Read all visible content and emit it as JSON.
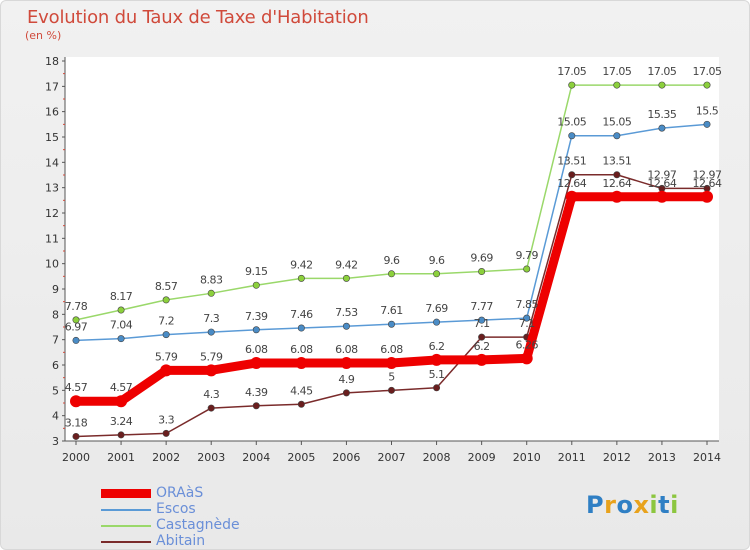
{
  "chart_data": {
    "type": "line",
    "title": "Evolution du Taux de Taxe d'Habitation",
    "subtitle": "(en %)",
    "xlabel": "",
    "ylabel": "",
    "x": [
      "2000",
      "2001",
      "2002",
      "2003",
      "2004",
      "2005",
      "2006",
      "2007",
      "2008",
      "2009",
      "2010",
      "2011",
      "2012",
      "2013",
      "2014"
    ],
    "ylim": [
      3,
      18
    ],
    "yticks": [
      "3",
      "4",
      "5",
      "6",
      "7",
      "8",
      "9",
      "10",
      "11",
      "12",
      "13",
      "14",
      "15",
      "16",
      "17",
      "18"
    ],
    "grid": false,
    "legend_position": "bottom-left",
    "series": [
      {
        "name": "ORAàS",
        "color": "#ee0000",
        "marker": "#ee0000",
        "values": [
          4.57,
          4.57,
          5.79,
          5.79,
          6.08,
          6.08,
          6.08,
          6.08,
          6.2,
          6.2,
          6.26,
          12.64,
          12.64,
          12.64,
          12.64
        ],
        "labels": [
          "4.57",
          "4.57",
          "5.79",
          "5.79",
          "6.08",
          "6.08",
          "6.08",
          "6.08",
          "6.2",
          "6.2",
          "6.26",
          "12.64",
          "12.64",
          "12.64",
          "12.64"
        ]
      },
      {
        "name": "Escos",
        "color": "#5a9ad6",
        "marker": "#4a8cc6",
        "values": [
          6.97,
          7.04,
          7.2,
          7.3,
          7.39,
          7.46,
          7.53,
          7.61,
          7.69,
          7.77,
          7.85,
          15.05,
          15.05,
          15.35,
          15.5
        ],
        "labels": [
          "6.97",
          "7.04",
          "7.2",
          "7.3",
          "7.39",
          "7.46",
          "7.53",
          "7.61",
          "7.69",
          "7.77",
          "7.85",
          "15.05",
          "15.05",
          "15.35",
          "15.5"
        ]
      },
      {
        "name": "Castagnède",
        "color": "#9ad86a",
        "marker": "#8cd03c",
        "values": [
          7.78,
          8.17,
          8.57,
          8.83,
          9.15,
          9.42,
          9.42,
          9.6,
          9.6,
          9.69,
          9.79,
          17.05,
          17.05,
          17.05,
          17.05
        ],
        "labels": [
          "7.78",
          "8.17",
          "8.57",
          "8.83",
          "9.15",
          "9.42",
          "9.42",
          "9.6",
          "9.6",
          "9.69",
          "9.79",
          "17.05",
          "17.05",
          "17.05",
          "17.05"
        ]
      },
      {
        "name": "Abitain",
        "color": "#7a2b2b",
        "marker": "#6a1e1e",
        "values": [
          3.18,
          3.24,
          3.3,
          4.3,
          4.39,
          4.45,
          4.9,
          5,
          5.1,
          7.1,
          7.1,
          13.51,
          13.51,
          12.97,
          12.97
        ],
        "labels": [
          "3.18",
          "3.24",
          "3.3",
          "4.3",
          "4.39",
          "4.45",
          "4.9",
          "5",
          "5.1",
          "7.1",
          "7.1",
          "13.51",
          "13.51",
          "12.97",
          "12.97"
        ]
      }
    ]
  },
  "logo": {
    "letters": [
      "P",
      "r",
      "o",
      "x",
      "i",
      "t",
      "i"
    ],
    "colors": [
      "#2f7fc4",
      "#e8a21c",
      "#2f7fc4",
      "#e8a21c",
      "#8cc63f",
      "#2f7fc4",
      "#8cc63f"
    ]
  }
}
